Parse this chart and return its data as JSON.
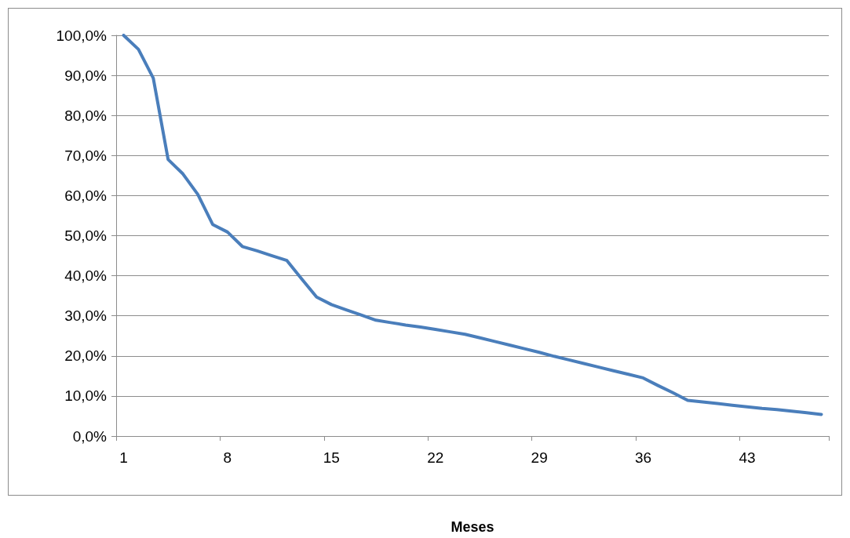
{
  "chart_data": {
    "type": "line",
    "xlabel": "Meses",
    "categories": [
      "1",
      null,
      null,
      null,
      null,
      null,
      null,
      "8",
      null,
      null,
      null,
      null,
      null,
      null,
      "15",
      null,
      null,
      null,
      null,
      null,
      null,
      "22",
      null,
      null,
      null,
      null,
      null,
      null,
      "29",
      null,
      null,
      null,
      null,
      null,
      null,
      "36",
      null,
      null,
      null,
      null,
      null,
      null,
      "43",
      null,
      null,
      null,
      null,
      null
    ],
    "series": [
      {
        "color": "#4a7ebb",
        "values": [
          100,
          96.5,
          89.3,
          69.0,
          65.4,
          60.3,
          52.8,
          50.9,
          47.3,
          46.2,
          45.0,
          43.8,
          39.2,
          34.7,
          32.8,
          31.5,
          30.2,
          28.9,
          28.3,
          27.7,
          27.2,
          26.6,
          26.0,
          25.4,
          24.5,
          23.6,
          22.7,
          21.8,
          20.9,
          19.9,
          19.0,
          18.1,
          17.2,
          16.3,
          15.4,
          14.5,
          12.6,
          10.8,
          8.9,
          8.5,
          8.1,
          7.7,
          7.3,
          6.9,
          6.6,
          6.2,
          5.8,
          5.4
        ]
      }
    ],
    "ylim": [
      0,
      100
    ],
    "yticks": [
      {
        "value": 0,
        "label": "0,0%"
      },
      {
        "value": 10,
        "label": "10,0%"
      },
      {
        "value": 20,
        "label": "20,0%"
      },
      {
        "value": 30,
        "label": "30,0%"
      },
      {
        "value": 40,
        "label": "40,0%"
      },
      {
        "value": 50,
        "label": "50,0%"
      },
      {
        "value": 60,
        "label": "60,0%"
      },
      {
        "value": 70,
        "label": "70,0%"
      },
      {
        "value": 80,
        "label": "80,0%"
      },
      {
        "value": 90,
        "label": "90,0%"
      },
      {
        "value": 100,
        "label": "100,0%"
      }
    ],
    "grid": "y",
    "marker": "none",
    "line_style": "solid"
  }
}
